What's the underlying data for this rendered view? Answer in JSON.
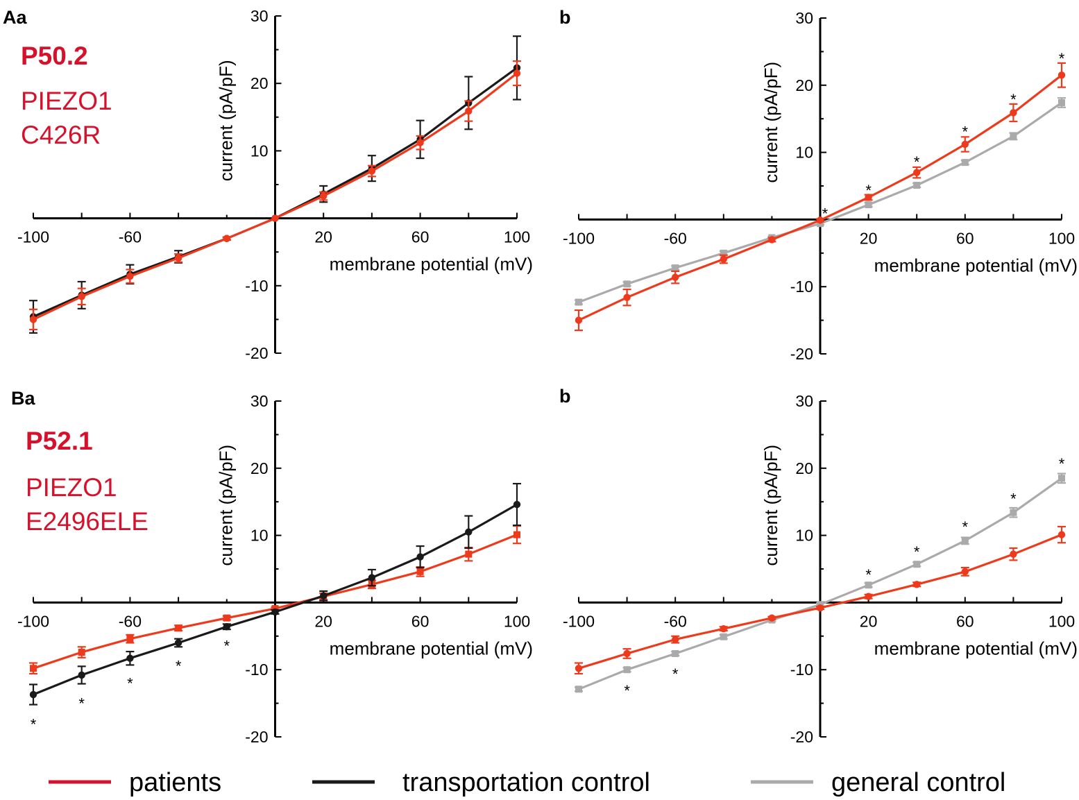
{
  "colors": {
    "patients": "#ee3a1c",
    "transportation": "#1a1a1a",
    "general": "#aaaaaa",
    "label_red": "#d6112b",
    "axis": "#000000"
  },
  "legend": [
    {
      "key": "patients",
      "label": "patients",
      "color": "#d6112b"
    },
    {
      "key": "transportation",
      "label": "transportation control",
      "color": "#1a1a1a"
    },
    {
      "key": "general",
      "label": "general control",
      "color": "#aaaaaa"
    }
  ],
  "chart_data": [
    {
      "id": "Aa",
      "panel_label": "Aa",
      "type": "line",
      "patient_id": "P50.2",
      "gene": "PIEZO1",
      "mutation": "C426R",
      "xlabel": "membrane potential (mV)",
      "ylabel": "current (pA/pF)",
      "xlim": [
        -100,
        100
      ],
      "ylim": [
        -20,
        30
      ],
      "xticks": [
        "-100",
        "-60",
        "20",
        "60",
        "100"
      ],
      "yticks": [
        "30",
        "20",
        "10",
        "-10",
        "-20"
      ],
      "x": [
        -100,
        -80,
        -60,
        -40,
        -20,
        0,
        20,
        40,
        60,
        80,
        100
      ],
      "series": [
        {
          "name": "transportation control",
          "key": "transportation",
          "marker": "circle",
          "values": [
            -14.6,
            -11.4,
            -8.3,
            -5.7,
            -3.0,
            0.0,
            3.6,
            7.4,
            11.7,
            17.1,
            22.3
          ],
          "errors": [
            2.4,
            2.0,
            1.4,
            0.9,
            0.2,
            0.0,
            1.2,
            1.9,
            2.8,
            3.9,
            4.7
          ]
        },
        {
          "name": "patients",
          "key": "patients",
          "marker": "circle",
          "values": [
            -15.0,
            -11.6,
            -8.6,
            -5.9,
            -3.0,
            0.0,
            3.3,
            7.0,
            11.2,
            15.9,
            21.5
          ],
          "errors": [
            1.5,
            1.2,
            1.0,
            0.6,
            0.2,
            0.0,
            0.6,
            0.8,
            1.0,
            1.5,
            1.8
          ]
        }
      ],
      "annotations": []
    },
    {
      "id": "Ab",
      "panel_label": "b",
      "type": "line",
      "xlabel": "membrane potential (mV)",
      "ylabel": "current (pA/pF)",
      "xlim": [
        -100,
        100
      ],
      "ylim": [
        -20,
        30
      ],
      "xticks": [
        "-100",
        "-60",
        "20",
        "60",
        "100"
      ],
      "yticks": [
        "30",
        "20",
        "10",
        "-10",
        "-20"
      ],
      "x": [
        -100,
        -80,
        -60,
        -40,
        -20,
        0,
        20,
        40,
        60,
        80,
        100
      ],
      "series": [
        {
          "name": "general control",
          "key": "general",
          "marker": "square",
          "values": [
            -12.3,
            -9.6,
            -7.2,
            -5.0,
            -2.7,
            -0.6,
            2.2,
            5.1,
            8.5,
            12.4,
            17.4
          ],
          "errors": [
            0.3,
            0.3,
            0.3,
            0.3,
            0.2,
            0.2,
            0.3,
            0.3,
            0.3,
            0.5,
            0.7
          ]
        },
        {
          "name": "patients",
          "key": "patients",
          "marker": "circle",
          "values": [
            -15.0,
            -11.6,
            -8.6,
            -5.9,
            -3.0,
            -0.1,
            3.3,
            7.0,
            11.2,
            15.9,
            21.5
          ],
          "errors": [
            1.5,
            1.2,
            0.9,
            0.6,
            0.3,
            0.2,
            0.4,
            0.8,
            1.1,
            1.3,
            1.8
          ]
        }
      ],
      "annotations": [
        {
          "x": 2,
          "y": 1.0,
          "text": "*"
        },
        {
          "x": 20,
          "y": 4.5,
          "text": "*"
        },
        {
          "x": 40,
          "y": 8.7,
          "text": "*"
        },
        {
          "x": 60,
          "y": 13.2,
          "text": "*"
        },
        {
          "x": 80,
          "y": 18.0,
          "text": "*"
        },
        {
          "x": 100,
          "y": 24.1,
          "text": "*"
        }
      ]
    },
    {
      "id": "Ba",
      "panel_label": "Ba",
      "type": "line",
      "patient_id": "P52.1",
      "gene": "PIEZO1",
      "mutation": "E2496ELE",
      "xlabel": "membrane potential (mV)",
      "ylabel": "current (pA/pF)",
      "xlim": [
        -100,
        100
      ],
      "ylim": [
        -20,
        30
      ],
      "xticks": [
        "-100",
        "-60",
        "20",
        "60",
        "100"
      ],
      "yticks": [
        "30",
        "20",
        "10",
        "-10",
        "-20"
      ],
      "x": [
        -100,
        -80,
        -60,
        -40,
        -20,
        0,
        20,
        40,
        60,
        80,
        100
      ],
      "series": [
        {
          "name": "patients",
          "key": "patients",
          "marker": "square",
          "values": [
            -9.8,
            -7.4,
            -5.4,
            -3.8,
            -2.3,
            -0.9,
            0.9,
            2.7,
            4.6,
            7.2,
            10.1
          ],
          "errors": [
            0.8,
            0.8,
            0.6,
            0.4,
            0.3,
            0.2,
            0.5,
            0.6,
            0.7,
            1.0,
            1.3
          ]
        },
        {
          "name": "transportation control",
          "key": "transportation",
          "marker": "circle",
          "values": [
            -13.7,
            -10.8,
            -8.3,
            -6.0,
            -3.6,
            -1.4,
            1.0,
            3.7,
            6.8,
            10.5,
            14.6
          ],
          "errors": [
            1.5,
            1.3,
            1.0,
            0.6,
            0.4,
            0.3,
            0.7,
            1.2,
            1.6,
            2.4,
            3.1
          ]
        }
      ],
      "annotations": [
        {
          "x": -100,
          "y": -18.0,
          "text": "*"
        },
        {
          "x": -80,
          "y": -14.9,
          "text": "*"
        },
        {
          "x": -60,
          "y": -11.9,
          "text": "*"
        },
        {
          "x": -40,
          "y": -9.3,
          "text": "*"
        },
        {
          "x": -20,
          "y": -6.3,
          "text": "*"
        }
      ]
    },
    {
      "id": "Bb",
      "panel_label": "b",
      "type": "line",
      "xlabel": "membrane potential (mV)",
      "ylabel": "current (pA/pF)",
      "xlim": [
        -100,
        100
      ],
      "ylim": [
        -20,
        30
      ],
      "xticks": [
        "-100",
        "-60",
        "20",
        "60",
        "100"
      ],
      "yticks": [
        "30",
        "20",
        "10",
        "-10",
        "-20"
      ],
      "x": [
        -100,
        -80,
        -60,
        -40,
        -20,
        0,
        20,
        40,
        60,
        80,
        100
      ],
      "series": [
        {
          "name": "general control",
          "key": "general",
          "marker": "square",
          "values": [
            -12.9,
            -10.0,
            -7.6,
            -5.1,
            -2.6,
            -0.3,
            2.6,
            5.7,
            9.2,
            13.4,
            18.5
          ],
          "errors": [
            0.3,
            0.3,
            0.3,
            0.3,
            0.2,
            0.2,
            0.3,
            0.3,
            0.5,
            0.7,
            0.7
          ]
        },
        {
          "name": "patients",
          "key": "patients",
          "marker": "circle",
          "values": [
            -9.8,
            -7.6,
            -5.5,
            -3.9,
            -2.3,
            -0.8,
            0.9,
            2.7,
            4.6,
            7.2,
            10.1
          ],
          "errors": [
            0.8,
            0.7,
            0.5,
            0.3,
            0.2,
            0.2,
            0.3,
            0.3,
            0.6,
            0.9,
            1.2
          ]
        }
      ],
      "annotations": [
        {
          "x": -80,
          "y": -13.0,
          "text": "*"
        },
        {
          "x": -60,
          "y": -10.5,
          "text": "*"
        },
        {
          "x": 20,
          "y": 4.3,
          "text": "*"
        },
        {
          "x": 40,
          "y": 7.7,
          "text": "*"
        },
        {
          "x": 60,
          "y": 11.4,
          "text": "*"
        },
        {
          "x": 80,
          "y": 15.6,
          "text": "*"
        },
        {
          "x": 100,
          "y": 20.8,
          "text": "*"
        }
      ]
    }
  ]
}
